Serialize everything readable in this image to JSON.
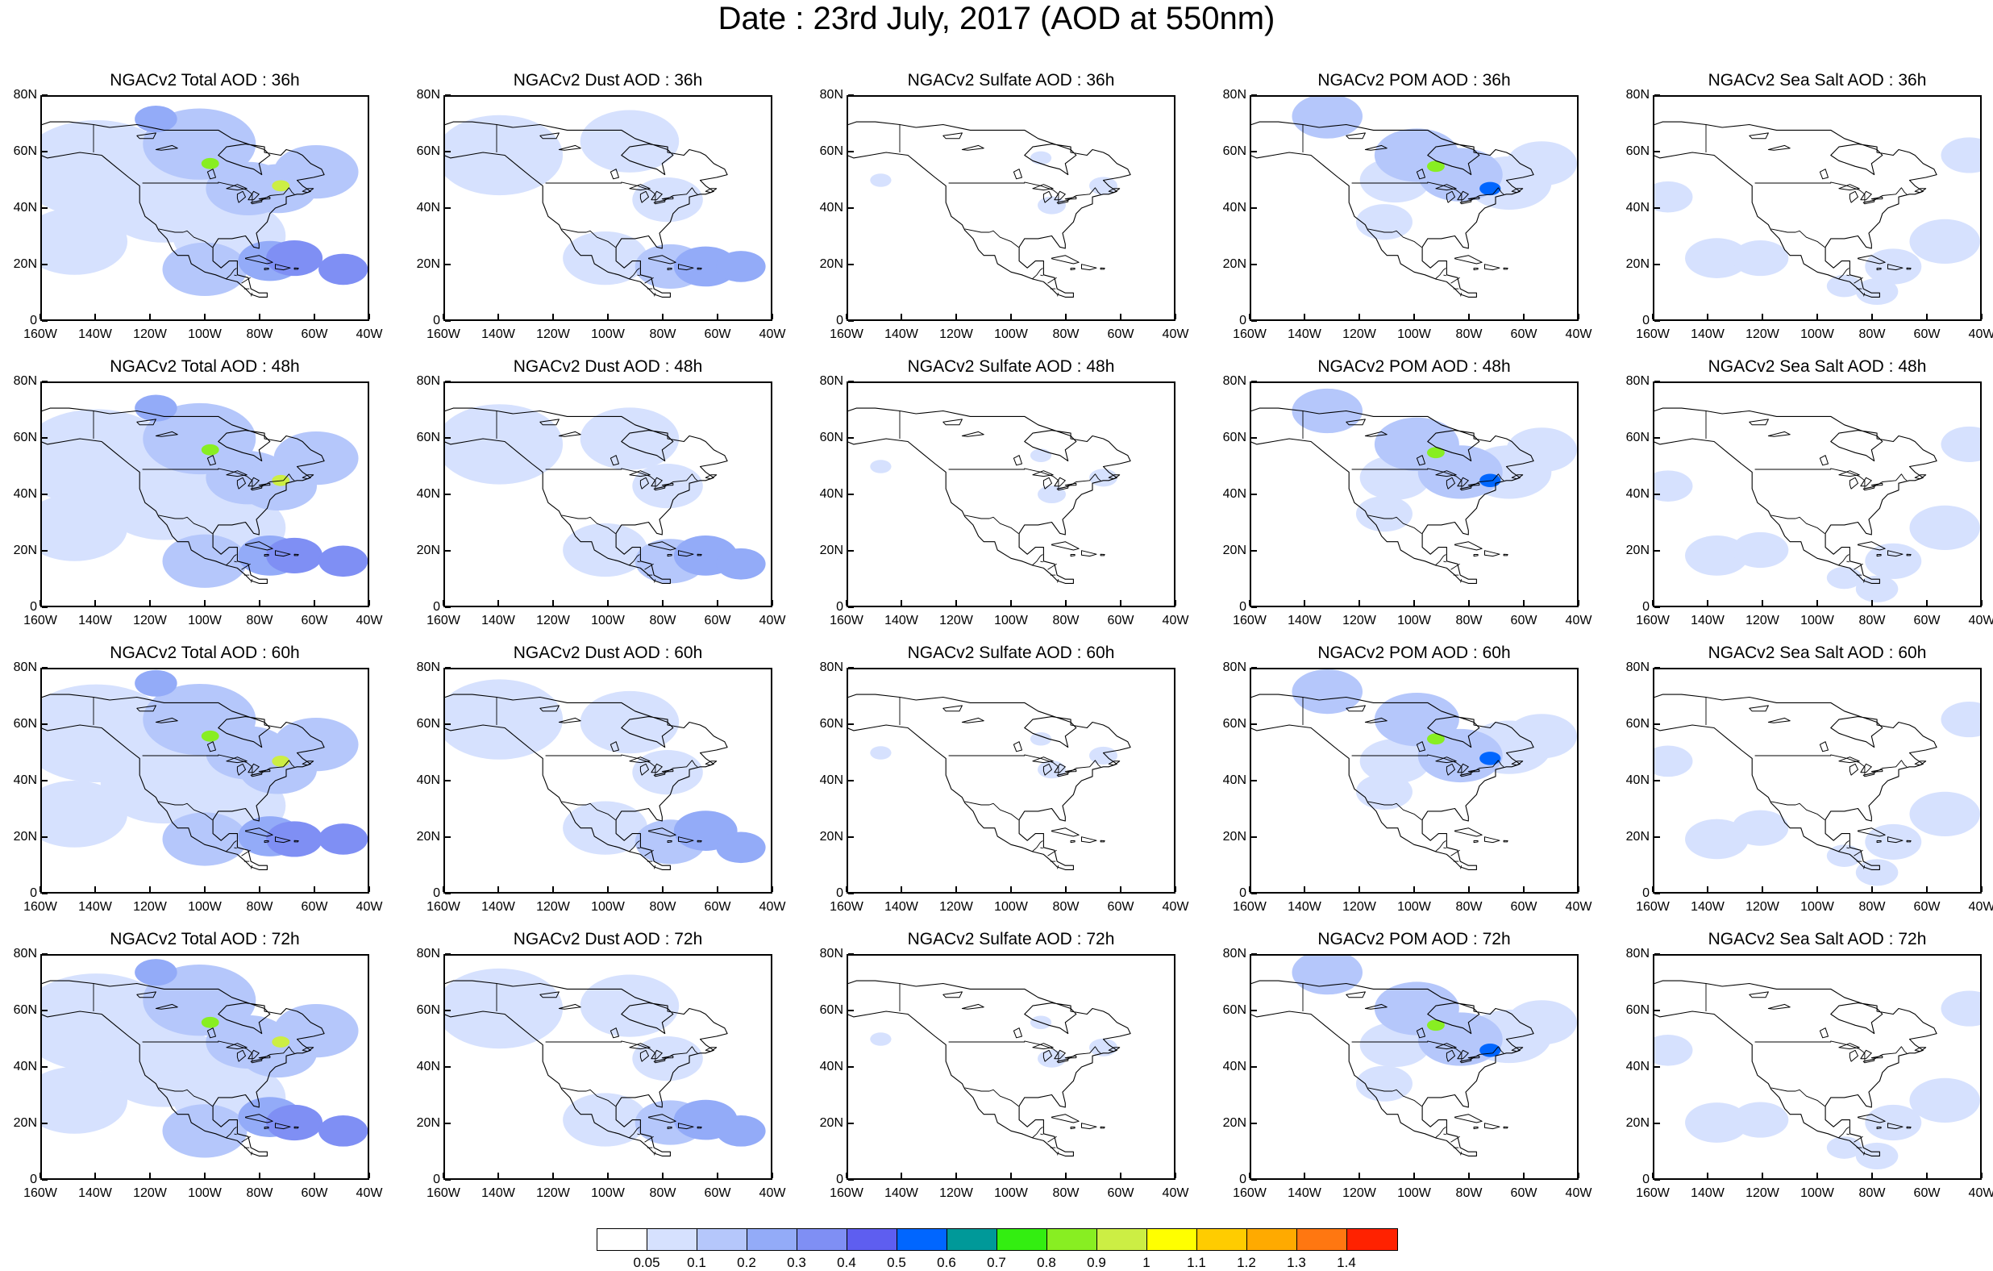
{
  "title": "Date : 23rd July, 2017 (AOD at 550nm)",
  "map": {
    "lon_range": [
      -160,
      -40
    ],
    "lat_range": [
      0,
      80
    ],
    "x_ticks": [
      "160W",
      "140W",
      "120W",
      "100W",
      "80W",
      "60W",
      "40W"
    ],
    "y_ticks": [
      "80N",
      "60N",
      "40N",
      "20N",
      "0"
    ]
  },
  "rows": [
    "36h",
    "48h",
    "60h",
    "72h"
  ],
  "columns": [
    "Total",
    "Dust",
    "Sulfate",
    "POM",
    "Sea Salt"
  ],
  "panels": [
    [
      "NGACv2 Total AOD : 36h",
      "NGACv2 Dust AOD : 36h",
      "NGACv2 Sulfate AOD : 36h",
      "NGACv2 POM AOD : 36h",
      "NGACv2 Sea Salt AOD : 36h"
    ],
    [
      "NGACv2 Total AOD : 48h",
      "NGACv2 Dust AOD : 48h",
      "NGACv2 Sulfate AOD : 48h",
      "NGACv2 POM AOD : 48h",
      "NGACv2 Sea Salt AOD : 48h"
    ],
    [
      "NGACv2 Total AOD : 60h",
      "NGACv2 Dust AOD : 60h",
      "NGACv2 Sulfate AOD : 60h",
      "NGACv2 POM AOD : 60h",
      "NGACv2 Sea Salt AOD : 60h"
    ],
    [
      "NGACv2 Total AOD : 72h",
      "NGACv2 Dust AOD : 72h",
      "NGACv2 Sulfate AOD : 72h",
      "NGACv2 POM AOD : 72h",
      "NGACv2 Sea Salt  AOD : 72h"
    ]
  ],
  "colorbar": {
    "colors": [
      "#ffffff",
      "#d6e1fe",
      "#b5c7fb",
      "#93abf8",
      "#7f8ff4",
      "#5e5ef0",
      "#0066ff",
      "#009999",
      "#33ee11",
      "#88ee22",
      "#ccee44",
      "#ffff00",
      "#ffcc00",
      "#ffaa00",
      "#ff7711",
      "#ff2200"
    ],
    "labels": [
      "0.05",
      "0.1",
      "0.2",
      "0.3",
      "0.4",
      "0.5",
      "0.6",
      "0.7",
      "0.8",
      "0.9",
      "1",
      "1.1",
      "1.2",
      "1.3",
      "1.4"
    ]
  }
}
